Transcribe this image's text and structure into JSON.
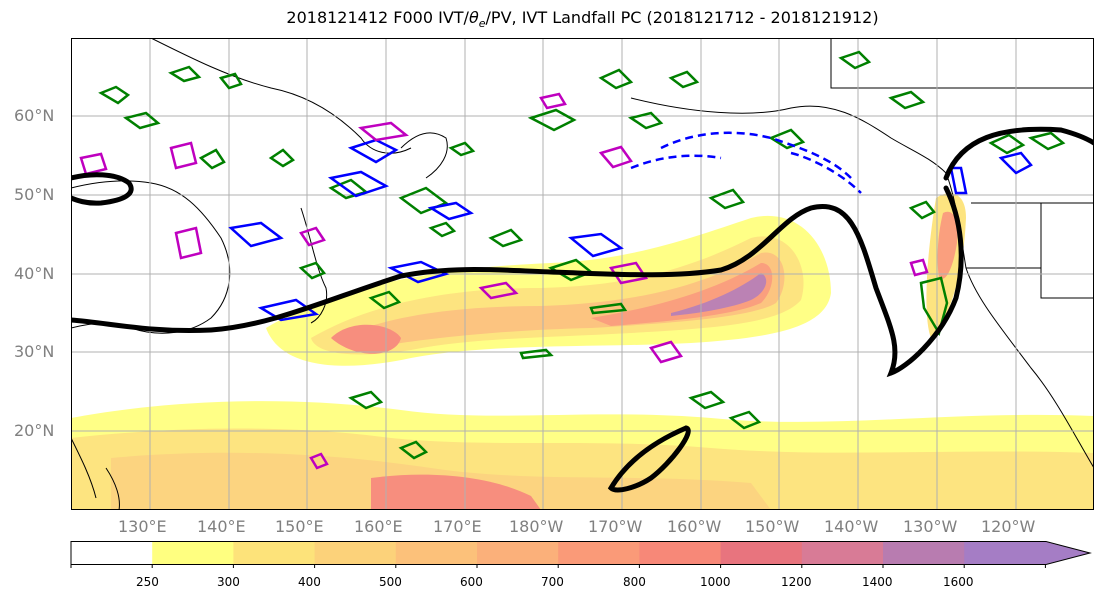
{
  "title_main": "2018121412 F000 IVT/",
  "title_theta": "θ",
  "title_e": "e",
  "title_rest": "/PV, IVT Landfall PC (2018121712 - 2018121912)",
  "lat_labels": [
    "60°N",
    "50°N",
    "40°N",
    "30°N",
    "20°N"
  ],
  "lon_labels": [
    "130°E",
    "140°E",
    "150°E",
    "160°E",
    "170°E",
    "180°W",
    "170°W",
    "160°W",
    "150°W",
    "140°W",
    "130°W",
    "120°W"
  ],
  "colorbar": {
    "ticks": [
      "250",
      "300",
      "400",
      "500",
      "600",
      "700",
      "800",
      "1000",
      "1200",
      "1400",
      "1600"
    ],
    "colors": [
      "#ffffff",
      "#ffff80",
      "#fde37a",
      "#fcd27a",
      "#fcc17a",
      "#fbb07a",
      "#fa9a78",
      "#f78878",
      "#e8747e",
      "#d87b96",
      "#b87cb0",
      "#a57dc5"
    ]
  },
  "colors": {
    "ivt_contour": "#000000",
    "theta_e_contour": "#008000",
    "pv_positive": "#0000ff",
    "pv_magenta": "#bf00bf"
  }
}
